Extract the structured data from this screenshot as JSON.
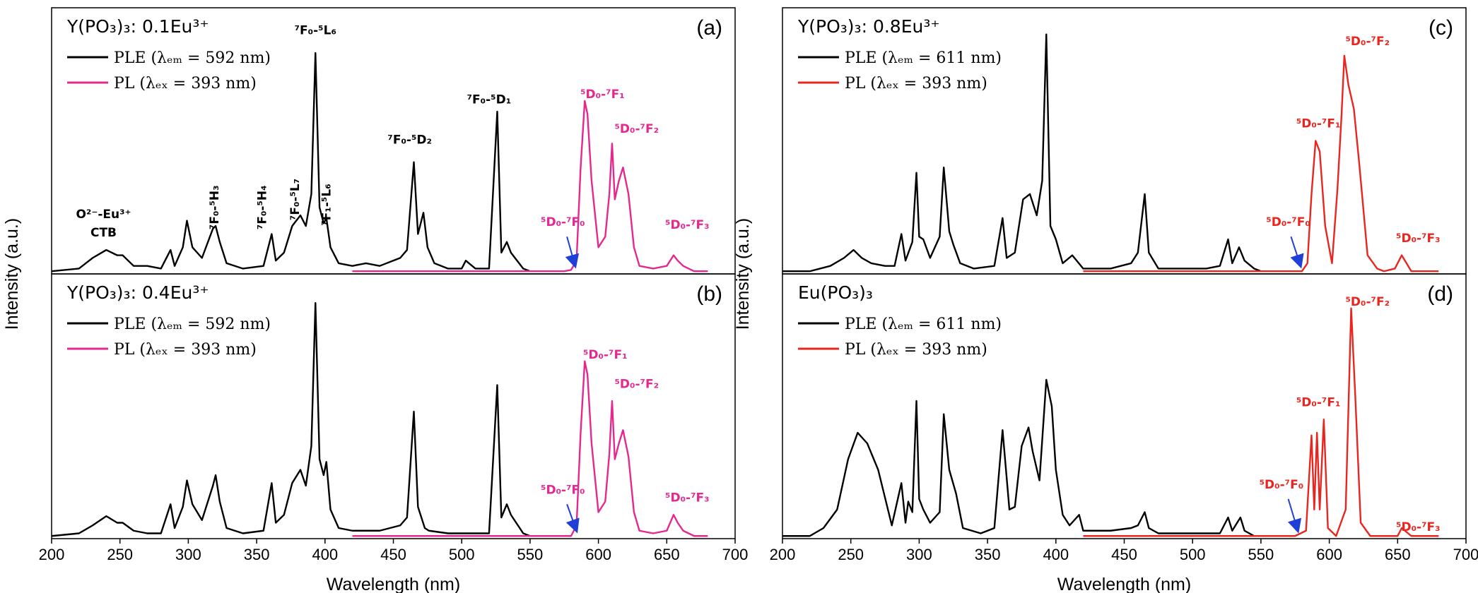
{
  "chart_data": [
    {
      "type": "line",
      "title": "Y(PO₃)₃: 0.1Eu³⁺",
      "panel_label": "(a)",
      "ylabel": "Intensity (a.u.)",
      "xlim": [
        200,
        700
      ],
      "ylim": [
        0,
        100
      ],
      "annotations": [
        {
          "text": "O²⁻-Eu³⁺",
          "color": "#000000"
        },
        {
          "text": "CTB",
          "color": "#000000"
        },
        {
          "text": "⁷F₀-⁵H₃",
          "color": "#000000"
        },
        {
          "text": "⁷F₀-⁵H₄",
          "color": "#000000"
        },
        {
          "text": "⁷F₀-⁵L₇",
          "color": "#000000"
        },
        {
          "text": "⁷F₁-⁵L₆",
          "color": "#000000"
        },
        {
          "text": "⁷F₀-⁵L₆",
          "color": "#000000"
        },
        {
          "text": "⁷F₀-⁵D₂",
          "color": "#000000"
        },
        {
          "text": "⁷F₀-⁵D₁",
          "color": "#000000"
        },
        {
          "text": "⁵D₀-⁷F₀",
          "color": "#e5288f"
        },
        {
          "text": "⁵D₀-⁷F₁",
          "color": "#e5288f"
        },
        {
          "text": "⁵D₀-⁷F₂",
          "color": "#e5288f"
        },
        {
          "text": "⁵D₀-⁷F₃",
          "color": "#e5288f"
        }
      ],
      "series": [
        {
          "name": "PLE (λₑₘ = 592 nm)",
          "color": "#000000",
          "x": [
            200,
            220,
            230,
            240,
            248,
            252,
            260,
            270,
            280,
            287,
            290,
            296,
            299,
            303,
            310,
            318,
            320,
            323,
            328,
            340,
            355,
            361,
            364,
            370,
            376,
            382,
            386,
            390,
            393,
            396,
            399,
            401,
            404,
            410,
            420,
            430,
            440,
            450,
            455,
            460,
            465,
            468,
            472,
            475,
            480,
            490,
            500,
            503,
            510,
            520,
            526,
            529,
            533,
            536,
            545,
            550
          ],
          "values": [
            1,
            2,
            6,
            9,
            7,
            7,
            3,
            3,
            2,
            9,
            3,
            10,
            20,
            10,
            6,
            17,
            18,
            12,
            4,
            2,
            3,
            15,
            5,
            8,
            18,
            22,
            18,
            30,
            83,
            25,
            19,
            21,
            10,
            4,
            3,
            4,
            3,
            5,
            6,
            9,
            42,
            15,
            23,
            10,
            4,
            2,
            2,
            5,
            2,
            2,
            61,
            8,
            12,
            8,
            2,
            1
          ]
        },
        {
          "name": "PL  (λₑₓ = 393 nm)",
          "color": "#e5288f",
          "x": [
            420,
            560,
            575,
            580,
            584,
            587,
            590,
            592,
            595,
            600,
            605,
            608,
            610,
            612,
            615,
            618,
            622,
            626,
            630,
            640,
            650,
            655,
            658,
            662,
            670,
            680
          ],
          "values": [
            1,
            1,
            1,
            1.5,
            5,
            40,
            65,
            60,
            35,
            10,
            14,
            30,
            49,
            28,
            35,
            40,
            30,
            10,
            3,
            2,
            3,
            7,
            5,
            3,
            1,
            1
          ]
        }
      ]
    },
    {
      "type": "line",
      "title": "Y(PO₃)₃: 0.4Eu³⁺",
      "panel_label": "(b)",
      "xlabel": "Wavelength (nm)",
      "xlim": [
        200,
        700
      ],
      "ylim": [
        0,
        100
      ],
      "xticks": [
        200,
        250,
        300,
        350,
        400,
        450,
        500,
        550,
        600,
        650,
        700
      ],
      "annotations": [
        {
          "text": "⁵D₀-⁷F₀",
          "color": "#e5288f"
        },
        {
          "text": "⁵D₀-⁷F₁",
          "color": "#e5288f"
        },
        {
          "text": "⁵D₀-⁷F₂",
          "color": "#e5288f"
        },
        {
          "text": "⁵D₀-⁷F₃",
          "color": "#e5288f"
        }
      ],
      "series": [
        {
          "name": "PLE (λₑₘ = 592 nm)",
          "color": "#000000",
          "x": [
            200,
            220,
            230,
            240,
            248,
            252,
            260,
            270,
            280,
            287,
            290,
            296,
            299,
            303,
            310,
            318,
            320,
            323,
            328,
            340,
            355,
            361,
            364,
            370,
            376,
            382,
            386,
            390,
            393,
            396,
            399,
            401,
            404,
            410,
            420,
            440,
            455,
            460,
            465,
            468,
            473,
            476,
            490,
            510,
            520,
            526,
            529,
            533,
            536,
            545,
            550
          ],
          "values": [
            1,
            2,
            5,
            8.5,
            6,
            6,
            3,
            2,
            2,
            13,
            4,
            12,
            22,
            13,
            7,
            20,
            24,
            14,
            4,
            2,
            3,
            21,
            6,
            9,
            21,
            26,
            20,
            35,
            89,
            30,
            24,
            29,
            11,
            4,
            3,
            3,
            5,
            8,
            48,
            12,
            4,
            3,
            2,
            2,
            2,
            58,
            8,
            13,
            9,
            2,
            1
          ]
        },
        {
          "name": "PL  (λₑₓ = 393 nm)",
          "color": "#e5288f",
          "x": [
            420,
            560,
            575,
            580,
            584,
            587,
            590,
            592,
            595,
            600,
            605,
            608,
            610,
            612,
            615,
            618,
            622,
            626,
            630,
            640,
            650,
            655,
            658,
            662,
            670,
            680
          ],
          "values": [
            1,
            1,
            1,
            1,
            5,
            40,
            67,
            62,
            36,
            10,
            14,
            32,
            52,
            30,
            36,
            41,
            31,
            10,
            3,
            2,
            3,
            9,
            6,
            3,
            1,
            1
          ]
        }
      ]
    },
    {
      "type": "line",
      "title": "Y(PO₃)₃: 0.8Eu³⁺",
      "panel_label": "(c)",
      "ylabel": "Intensity (a.u.)",
      "xlim": [
        200,
        700
      ],
      "ylim": [
        0,
        100
      ],
      "annotations": [
        {
          "text": "⁵D₀-⁷F₀",
          "color": "#e8251f"
        },
        {
          "text": "⁵D₀-⁷F₁",
          "color": "#e8251f"
        },
        {
          "text": "⁵D₀-⁷F₂",
          "color": "#e8251f"
        },
        {
          "text": "⁵D₀-⁷F₃",
          "color": "#e8251f"
        }
      ],
      "series": [
        {
          "name": "PLE (λₑₘ = 611 nm)",
          "color": "#000000",
          "x": [
            200,
            220,
            235,
            245,
            252,
            258,
            265,
            275,
            282,
            287,
            290,
            295,
            298,
            300,
            303,
            308,
            315,
            318,
            322,
            325,
            330,
            340,
            355,
            361,
            364,
            370,
            376,
            381,
            386,
            390,
            393,
            396,
            400,
            405,
            412,
            420,
            440,
            455,
            460,
            465,
            468,
            475,
            490,
            510,
            520,
            526,
            529,
            534,
            538,
            545,
            550
          ],
          "values": [
            1,
            1,
            3,
            6,
            9,
            6,
            4,
            3,
            3,
            15,
            5,
            12,
            38,
            14,
            13,
            6,
            14,
            40,
            16,
            11,
            4,
            2,
            3,
            21,
            6,
            8,
            28,
            30,
            22,
            35,
            90,
            18,
            13,
            4,
            7,
            2,
            2,
            4,
            8,
            30,
            8,
            2,
            2,
            2,
            3,
            13,
            4,
            10,
            5,
            2,
            1
          ]
        },
        {
          "name": "PL  (λₑₓ = 393 nm)",
          "color": "#e8251f",
          "x": [
            420,
            560,
            575,
            580,
            584,
            587,
            590,
            593,
            597,
            602,
            606,
            609,
            611,
            614,
            618,
            622,
            628,
            635,
            640,
            648,
            653,
            660,
            670,
            680
          ],
          "values": [
            1,
            1,
            1,
            1,
            4,
            30,
            50,
            46,
            18,
            4,
            32,
            60,
            82,
            71,
            62,
            41,
            7,
            2,
            1,
            2,
            7,
            1,
            1,
            1
          ]
        }
      ]
    },
    {
      "type": "line",
      "title": "Eu(PO₃)₃",
      "panel_label": "(d)",
      "xlabel": "Wavelength (nm)",
      "xlim": [
        200,
        700
      ],
      "ylim": [
        0,
        100
      ],
      "xticks": [
        200,
        250,
        300,
        350,
        400,
        450,
        500,
        550,
        600,
        650,
        700
      ],
      "annotations": [
        {
          "text": "⁵D₀-⁷F₀",
          "color": "#e8251f"
        },
        {
          "text": "⁵D₀-⁷F₁",
          "color": "#e8251f"
        },
        {
          "text": "⁵D₀-⁷F₂",
          "color": "#e8251f"
        },
        {
          "text": "⁵D₀-⁷F₃",
          "color": "#e8251f"
        }
      ],
      "series": [
        {
          "name": "PLE (λₑₘ = 611 nm)",
          "color": "#000000",
          "x": [
            200,
            220,
            230,
            240,
            248,
            255,
            262,
            270,
            280,
            287,
            290,
            292,
            295,
            298,
            300,
            303,
            308,
            315,
            318,
            322,
            327,
            332,
            345,
            355,
            361,
            366,
            370,
            375,
            380,
            383,
            388,
            393,
            397,
            400,
            405,
            410,
            417,
            420,
            440,
            455,
            460,
            465,
            468,
            475,
            490,
            510,
            520,
            526,
            529,
            535,
            538,
            545,
            550
          ],
          "values": [
            1,
            1,
            4,
            11,
            30,
            40,
            36,
            26,
            5,
            21,
            6,
            14,
            10,
            52,
            15,
            11,
            6,
            10,
            47,
            26,
            17,
            4,
            2,
            4,
            41,
            11,
            12,
            35,
            42,
            33,
            22,
            60,
            50,
            26,
            9,
            5,
            9,
            3,
            3,
            4,
            5,
            10,
            4,
            2,
            2,
            2,
            2,
            8,
            3,
            8,
            3,
            1,
            1
          ]
        },
        {
          "name": "PL  (λₑₓ = 393 nm)",
          "color": "#e8251f",
          "x": [
            420,
            560,
            575,
            583,
            587,
            589,
            591,
            593,
            596,
            599,
            605,
            612,
            616,
            619,
            623,
            630,
            650,
            653,
            660,
            680
          ],
          "values": [
            1,
            1,
            1,
            3,
            39,
            11,
            40,
            11,
            45,
            4,
            1,
            11,
            87,
            54,
            6,
            1,
            1,
            4,
            1,
            1
          ]
        }
      ]
    }
  ]
}
